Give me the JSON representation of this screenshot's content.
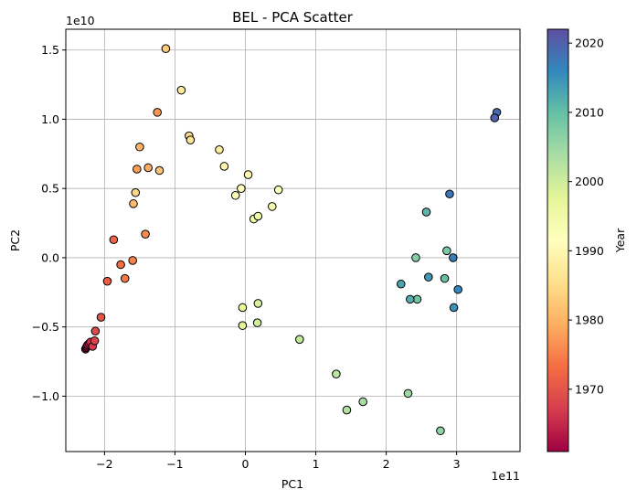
{
  "chart_data": {
    "type": "scatter",
    "title": "BEL - PCA Scatter",
    "xlabel": "PC1",
    "ylabel": "PC2",
    "x_offset_label": "1e11",
    "y_offset_label": "1e10",
    "xlim": [
      -2.55,
      3.9
    ],
    "ylim": [
      -1.4,
      1.65
    ],
    "x_ticks": [
      -2,
      -1,
      0,
      1,
      2,
      3
    ],
    "x_tick_labels": [
      "−2",
      "−1",
      "0",
      "1",
      "2",
      "3"
    ],
    "y_ticks": [
      -1.0,
      -0.5,
      0.0,
      0.5,
      1.0,
      1.5
    ],
    "y_tick_labels": [
      "−1.0",
      "−0.5",
      "0.0",
      "0.5",
      "1.0",
      "1.5"
    ],
    "grid": true,
    "colorbar": {
      "label": "Year",
      "range": [
        1961,
        2022
      ],
      "ticks": [
        1970,
        1980,
        1990,
        2000,
        2010,
        2020
      ],
      "colormap": "Spectral",
      "stops": [
        "#9e0142",
        "#d53e4f",
        "#f46d43",
        "#fdae61",
        "#fee08b",
        "#ffffbf",
        "#e6f598",
        "#abdda4",
        "#66c2a5",
        "#3288bd",
        "#5e4fa2"
      ]
    },
    "points": [
      {
        "x": -2.27,
        "y": -0.66,
        "year": 1961
      },
      {
        "x": -2.26,
        "y": -0.65,
        "year": 1962
      },
      {
        "x": -2.25,
        "y": -0.64,
        "year": 1963
      },
      {
        "x": -2.24,
        "y": -0.63,
        "year": 1964
      },
      {
        "x": -2.22,
        "y": -0.62,
        "year": 1965
      },
      {
        "x": -2.2,
        "y": -0.61,
        "year": 1966
      },
      {
        "x": -2.17,
        "y": -0.64,
        "year": 1967
      },
      {
        "x": -2.14,
        "y": -0.6,
        "year": 1968
      },
      {
        "x": -2.13,
        "y": -0.53,
        "year": 1969
      },
      {
        "x": -2.05,
        "y": -0.43,
        "year": 1970
      },
      {
        "x": -1.96,
        "y": -0.17,
        "year": 1971
      },
      {
        "x": -1.87,
        "y": 0.13,
        "year": 1972
      },
      {
        "x": -1.77,
        "y": -0.05,
        "year": 1973
      },
      {
        "x": -1.71,
        "y": -0.15,
        "year": 1974
      },
      {
        "x": -1.6,
        "y": -0.02,
        "year": 1975
      },
      {
        "x": -1.42,
        "y": 0.17,
        "year": 1976
      },
      {
        "x": -1.25,
        "y": 1.05,
        "year": 1977
      },
      {
        "x": -1.54,
        "y": 0.64,
        "year": 1978
      },
      {
        "x": -1.38,
        "y": 0.65,
        "year": 1979
      },
      {
        "x": -1.5,
        "y": 0.8,
        "year": 1980
      },
      {
        "x": -1.59,
        "y": 0.39,
        "year": 1981
      },
      {
        "x": -1.22,
        "y": 0.63,
        "year": 1982
      },
      {
        "x": -1.13,
        "y": 1.51,
        "year": 1983
      },
      {
        "x": -1.56,
        "y": 0.47,
        "year": 1984
      },
      {
        "x": -0.8,
        "y": 0.88,
        "year": 1985
      },
      {
        "x": -0.78,
        "y": 0.85,
        "year": 1986
      },
      {
        "x": -0.91,
        "y": 1.21,
        "year": 1987
      },
      {
        "x": -0.37,
        "y": 0.78,
        "year": 1988
      },
      {
        "x": -0.3,
        "y": 0.66,
        "year": 1989
      },
      {
        "x": 0.04,
        "y": 0.6,
        "year": 1990
      },
      {
        "x": -0.14,
        "y": 0.45,
        "year": 1991
      },
      {
        "x": -0.06,
        "y": 0.5,
        "year": 1992
      },
      {
        "x": 0.47,
        "y": 0.49,
        "year": 1993
      },
      {
        "x": 0.38,
        "y": 0.37,
        "year": 1994
      },
      {
        "x": 0.12,
        "y": 0.28,
        "year": 1995
      },
      {
        "x": 0.18,
        "y": 0.3,
        "year": 1996
      },
      {
        "x": -0.04,
        "y": -0.36,
        "year": 1997
      },
      {
        "x": -0.04,
        "y": -0.49,
        "year": 1998
      },
      {
        "x": 0.18,
        "y": -0.33,
        "year": 1999
      },
      {
        "x": 0.17,
        "y": -0.47,
        "year": 2000
      },
      {
        "x": 0.77,
        "y": -0.59,
        "year": 2001
      },
      {
        "x": 1.29,
        "y": -0.84,
        "year": 2002
      },
      {
        "x": 1.44,
        "y": -1.1,
        "year": 2003
      },
      {
        "x": 1.67,
        "y": -1.04,
        "year": 2004
      },
      {
        "x": 2.31,
        "y": -0.98,
        "year": 2005
      },
      {
        "x": 2.77,
        "y": -1.25,
        "year": 2006
      },
      {
        "x": 2.42,
        "y": 0.0,
        "year": 2007
      },
      {
        "x": 2.86,
        "y": 0.05,
        "year": 2008
      },
      {
        "x": 2.44,
        "y": -0.3,
        "year": 2009
      },
      {
        "x": 2.83,
        "y": -0.15,
        "year": 2010
      },
      {
        "x": 2.57,
        "y": 0.33,
        "year": 2011
      },
      {
        "x": 2.34,
        "y": -0.3,
        "year": 2012
      },
      {
        "x": 2.21,
        "y": -0.19,
        "year": 2013
      },
      {
        "x": 2.6,
        "y": -0.14,
        "year": 2014
      },
      {
        "x": 2.96,
        "y": -0.36,
        "year": 2015
      },
      {
        "x": 3.02,
        "y": -0.23,
        "year": 2016
      },
      {
        "x": 2.95,
        "y": 0.0,
        "year": 2017
      },
      {
        "x": 2.9,
        "y": 0.46,
        "year": 2018
      },
      {
        "x": 3.57,
        "y": 1.05,
        "year": 2019
      },
      {
        "x": 3.54,
        "y": 1.01,
        "year": 2020
      }
    ]
  }
}
